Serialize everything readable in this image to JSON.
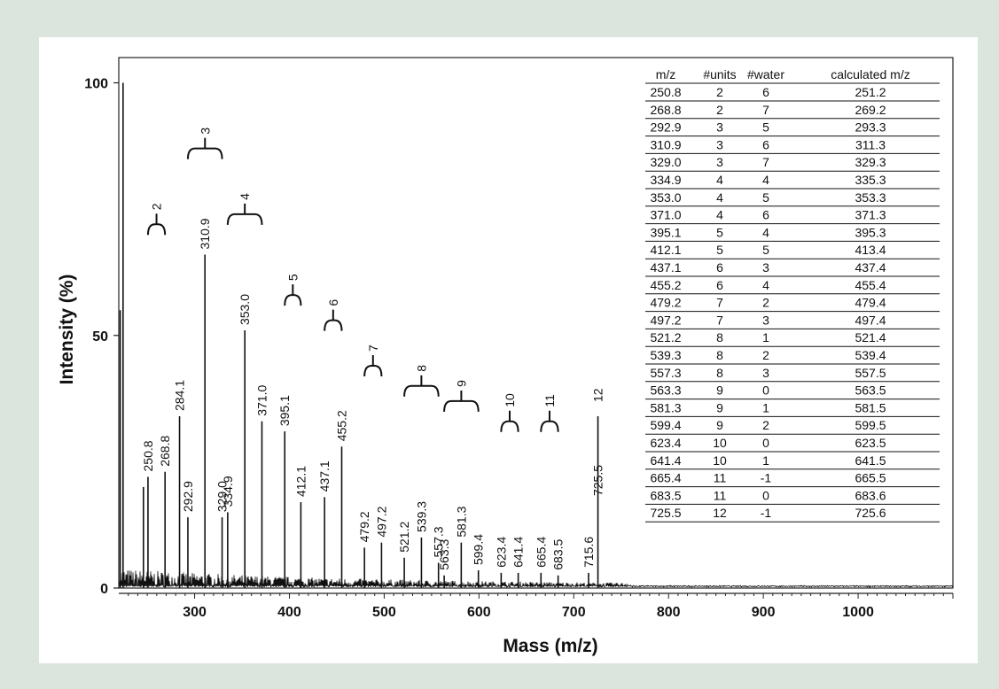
{
  "colors": {
    "background": "#dbe5de",
    "panel": "#ffffff",
    "ink": "#111111"
  },
  "chart_data": {
    "type": "line",
    "xlabel": "Mass (m/z)",
    "ylabel": "Intensity (%)",
    "xlim": [
      220,
      1100
    ],
    "ylim": [
      0,
      105
    ],
    "x_ticks": [
      300,
      400,
      500,
      600,
      700,
      800,
      900,
      1000
    ],
    "y_ticks": [
      0,
      50,
      100
    ],
    "grid": false,
    "major_peaks": [
      {
        "mz": 224.5,
        "intensity": 100,
        "label": ""
      },
      {
        "mz": 221.5,
        "intensity": 55,
        "label": ""
      },
      {
        "mz": 246,
        "intensity": 20,
        "label": ""
      },
      {
        "mz": 250.8,
        "intensity": 22,
        "label": "250.8"
      },
      {
        "mz": 268.8,
        "intensity": 23,
        "label": "268.8"
      },
      {
        "mz": 284.1,
        "intensity": 34,
        "label": "284.1"
      },
      {
        "mz": 292.9,
        "intensity": 14,
        "label": "292.9"
      },
      {
        "mz": 310.9,
        "intensity": 66,
        "label": "310.9"
      },
      {
        "mz": 329.0,
        "intensity": 14,
        "label": "329.0"
      },
      {
        "mz": 334.9,
        "intensity": 15,
        "label": "334.9"
      },
      {
        "mz": 353.0,
        "intensity": 51,
        "label": "353.0"
      },
      {
        "mz": 371.0,
        "intensity": 33,
        "label": "371.0"
      },
      {
        "mz": 395.1,
        "intensity": 31,
        "label": "395.1"
      },
      {
        "mz": 412.1,
        "intensity": 17,
        "label": "412.1"
      },
      {
        "mz": 437.1,
        "intensity": 18,
        "label": "437.1"
      },
      {
        "mz": 455.2,
        "intensity": 28,
        "label": "455.2"
      },
      {
        "mz": 479.2,
        "intensity": 8,
        "label": "479.2"
      },
      {
        "mz": 497.2,
        "intensity": 9,
        "label": "497.2"
      },
      {
        "mz": 521.2,
        "intensity": 6,
        "label": "521.2"
      },
      {
        "mz": 539.3,
        "intensity": 10,
        "label": "539.3"
      },
      {
        "mz": 557.3,
        "intensity": 5,
        "label": "557.3"
      },
      {
        "mz": 563.3,
        "intensity": 2.5,
        "label": "563.3"
      },
      {
        "mz": 581.3,
        "intensity": 9,
        "label": "581.3"
      },
      {
        "mz": 599.4,
        "intensity": 3.5,
        "label": "599.4"
      },
      {
        "mz": 623.4,
        "intensity": 3,
        "label": "623.4"
      },
      {
        "mz": 641.4,
        "intensity": 3,
        "label": "641.4"
      },
      {
        "mz": 665.4,
        "intensity": 3,
        "label": "665.4"
      },
      {
        "mz": 683.5,
        "intensity": 2.5,
        "label": "683.5"
      },
      {
        "mz": 715.6,
        "intensity": 3,
        "label": "715.6"
      },
      {
        "mz": 725.5,
        "intensity": 34,
        "label": "725.5"
      }
    ],
    "unit_brackets": [
      {
        "label": "2",
        "x1": 250.8,
        "x2": 268.8,
        "top": 72
      },
      {
        "label": "3",
        "x1": 292.9,
        "x2": 329.0,
        "top": 87
      },
      {
        "label": "4",
        "x1": 334.9,
        "x2": 371.0,
        "top": 74
      },
      {
        "label": "5",
        "x1": 395.1,
        "x2": 412.1,
        "top": 58
      },
      {
        "label": "6",
        "x1": 437.1,
        "x2": 455.2,
        "top": 53
      },
      {
        "label": "7",
        "x1": 479.2,
        "x2": 497.2,
        "top": 44
      },
      {
        "label": "8",
        "x1": 521.2,
        "x2": 557.3,
        "top": 40
      },
      {
        "label": "9",
        "x1": 563.3,
        "x2": 599.4,
        "top": 37
      },
      {
        "label": "10",
        "x1": 623.4,
        "x2": 641.4,
        "top": 33
      },
      {
        "label": "11",
        "x1": 665.4,
        "x2": 683.5,
        "top": 33
      },
      {
        "label": "12",
        "x1": 725.5,
        "x2": 725.5,
        "top": 34
      }
    ],
    "table": {
      "headers": [
        "m/z",
        "#units",
        "#water",
        "calculated m/z"
      ],
      "rows": [
        [
          "250.8",
          "2",
          "6",
          "251.2"
        ],
        [
          "268.8",
          "2",
          "7",
          "269.2"
        ],
        [
          "292.9",
          "3",
          "5",
          "293.3"
        ],
        [
          "310.9",
          "3",
          "6",
          "311.3"
        ],
        [
          "329.0",
          "3",
          "7",
          "329.3"
        ],
        [
          "334.9",
          "4",
          "4",
          "335.3"
        ],
        [
          "353.0",
          "4",
          "5",
          "353.3"
        ],
        [
          "371.0",
          "4",
          "6",
          "371.3"
        ],
        [
          "395.1",
          "5",
          "4",
          "395.3"
        ],
        [
          "412.1",
          "5",
          "5",
          "413.4"
        ],
        [
          "437.1",
          "6",
          "3",
          "437.4"
        ],
        [
          "455.2",
          "6",
          "4",
          "455.4"
        ],
        [
          "479.2",
          "7",
          "2",
          "479.4"
        ],
        [
          "497.2",
          "7",
          "3",
          "497.4"
        ],
        [
          "521.2",
          "8",
          "1",
          "521.4"
        ],
        [
          "539.3",
          "8",
          "2",
          "539.4"
        ],
        [
          "557.3",
          "8",
          "3",
          "557.5"
        ],
        [
          "563.3",
          "9",
          "0",
          "563.5"
        ],
        [
          "581.3",
          "9",
          "1",
          "581.5"
        ],
        [
          "599.4",
          "9",
          "2",
          "599.5"
        ],
        [
          "623.4",
          "10",
          "0",
          "623.5"
        ],
        [
          "641.4",
          "10",
          "1",
          "641.5"
        ],
        [
          "665.4",
          "11",
          "-1",
          "665.5"
        ],
        [
          "683.5",
          "11",
          "0",
          "683.6"
        ],
        [
          "725.5",
          "12",
          "-1",
          "725.6"
        ]
      ]
    }
  }
}
